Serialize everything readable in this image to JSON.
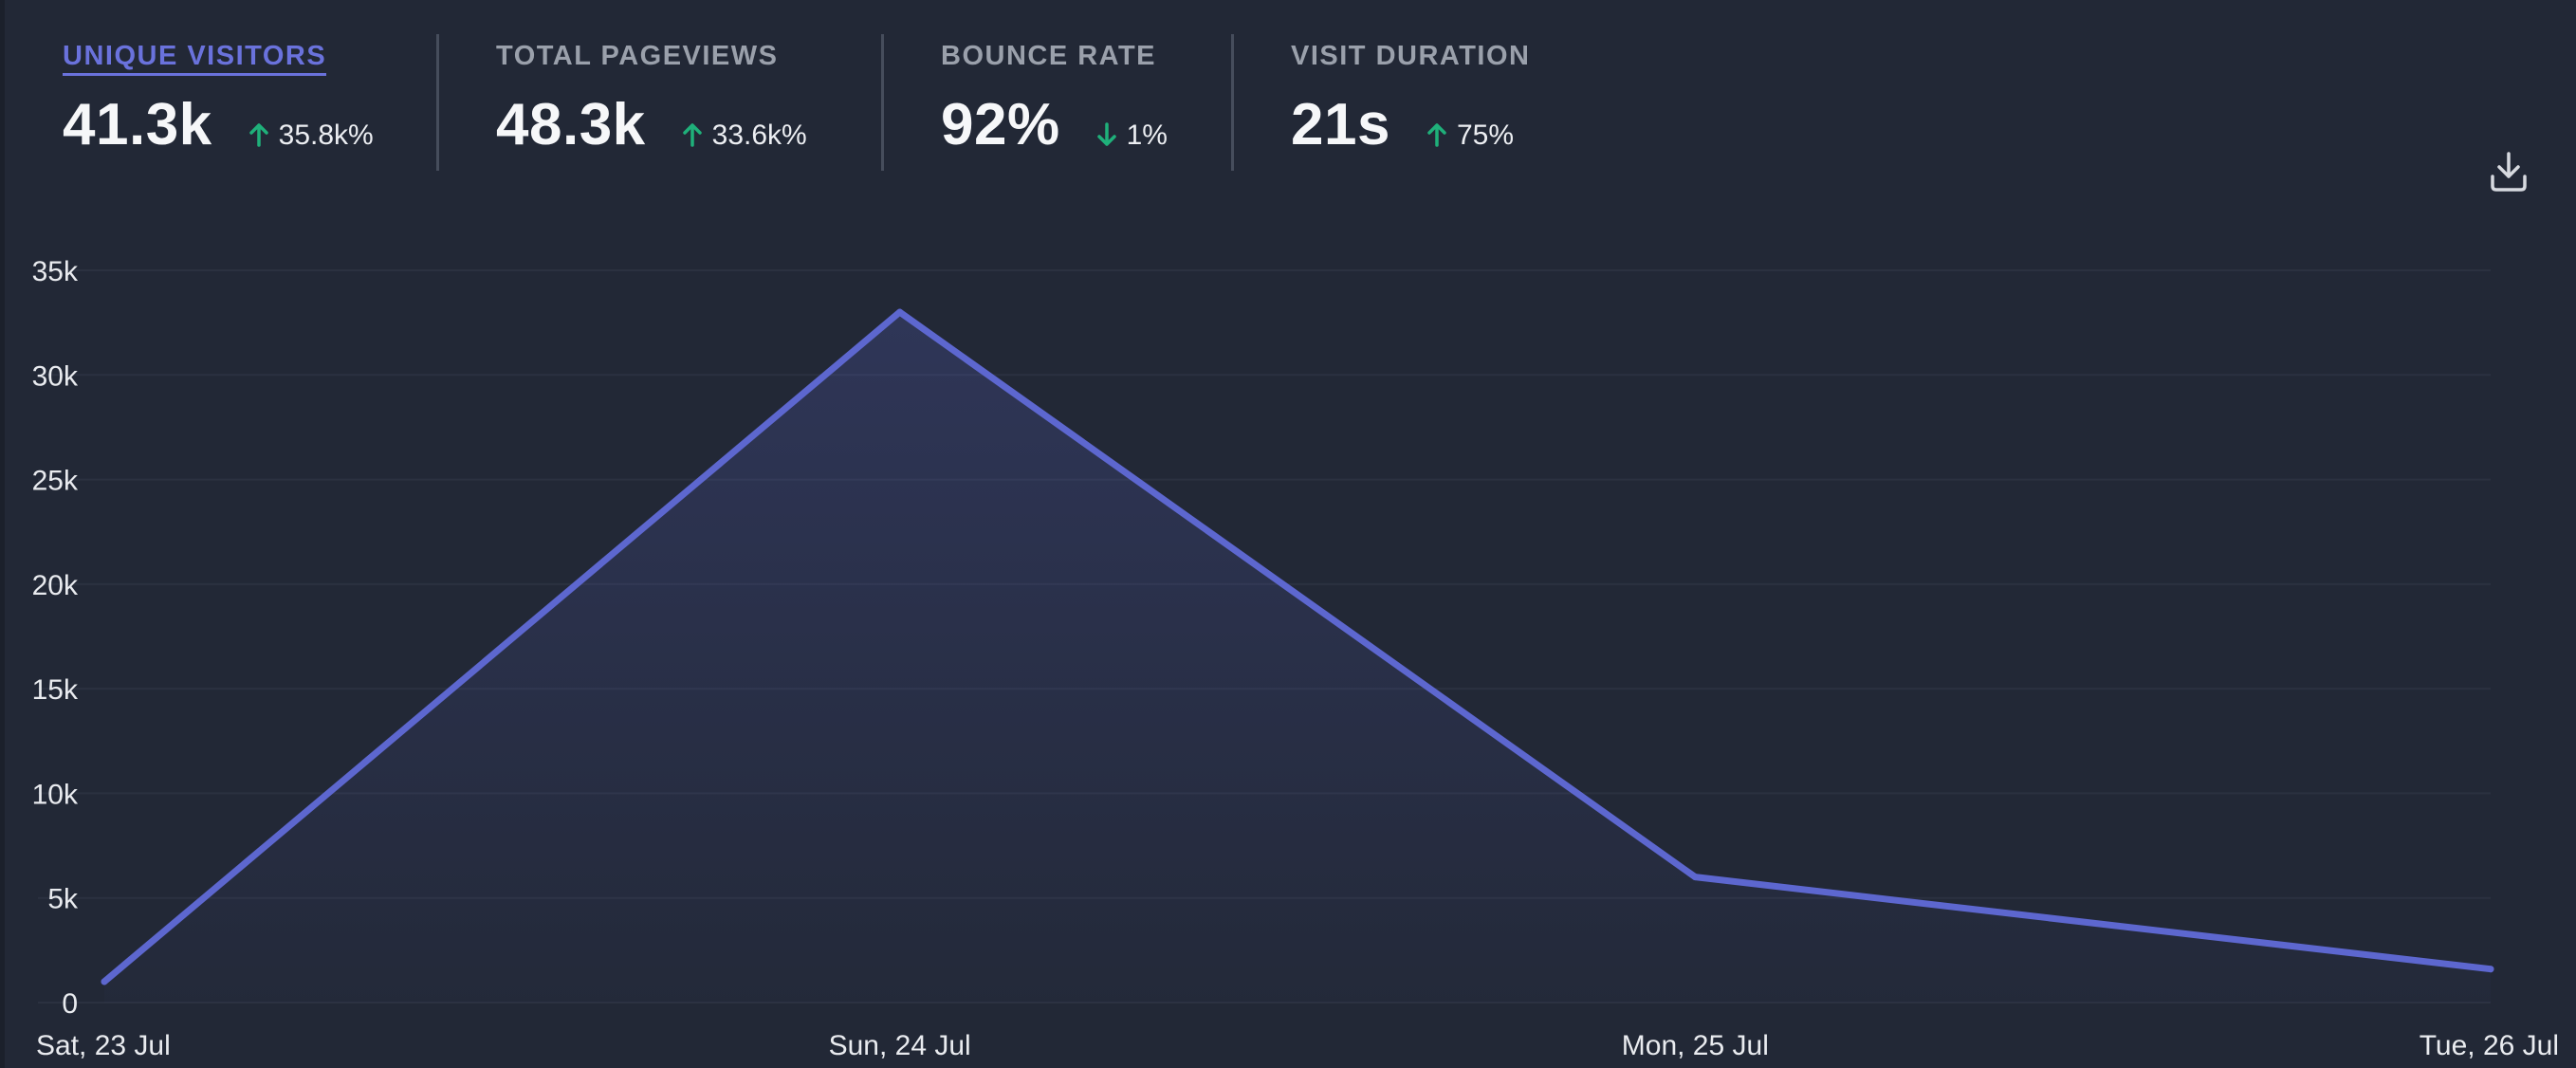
{
  "metrics": [
    {
      "label": "UNIQUE VISITORS",
      "value": "41.3k",
      "change": "35.8k%",
      "direction": "up",
      "active": true
    },
    {
      "label": "TOTAL PAGEVIEWS",
      "value": "48.3k",
      "change": "33.6k%",
      "direction": "up",
      "active": false
    },
    {
      "label": "BOUNCE RATE",
      "value": "92%",
      "change": "1%",
      "direction": "down",
      "active": false
    },
    {
      "label": "VISIT DURATION",
      "value": "21s",
      "change": "75%",
      "direction": "up",
      "active": false
    }
  ],
  "icons": {
    "download": "download-icon",
    "up": "arrow-up-icon",
    "down": "arrow-down-icon"
  },
  "colors": {
    "background": "#222836",
    "accent": "#5d67cf",
    "active_label": "#6a72dc",
    "positive_change": "#1fb07a",
    "grid": "#2b3140"
  },
  "chart_data": {
    "type": "area",
    "x": [
      "Sat, 23 Jul",
      "Sun, 24 Jul",
      "Mon, 25 Jul",
      "Tue, 26 Jul"
    ],
    "series": [
      {
        "values": [
          1000,
          33000,
          6000,
          1600
        ]
      }
    ],
    "ylim": [
      0,
      35000
    ],
    "yticks": [
      "0",
      "5k",
      "10k",
      "15k",
      "20k",
      "25k",
      "30k",
      "35k"
    ],
    "grid": true,
    "legend": "none"
  }
}
